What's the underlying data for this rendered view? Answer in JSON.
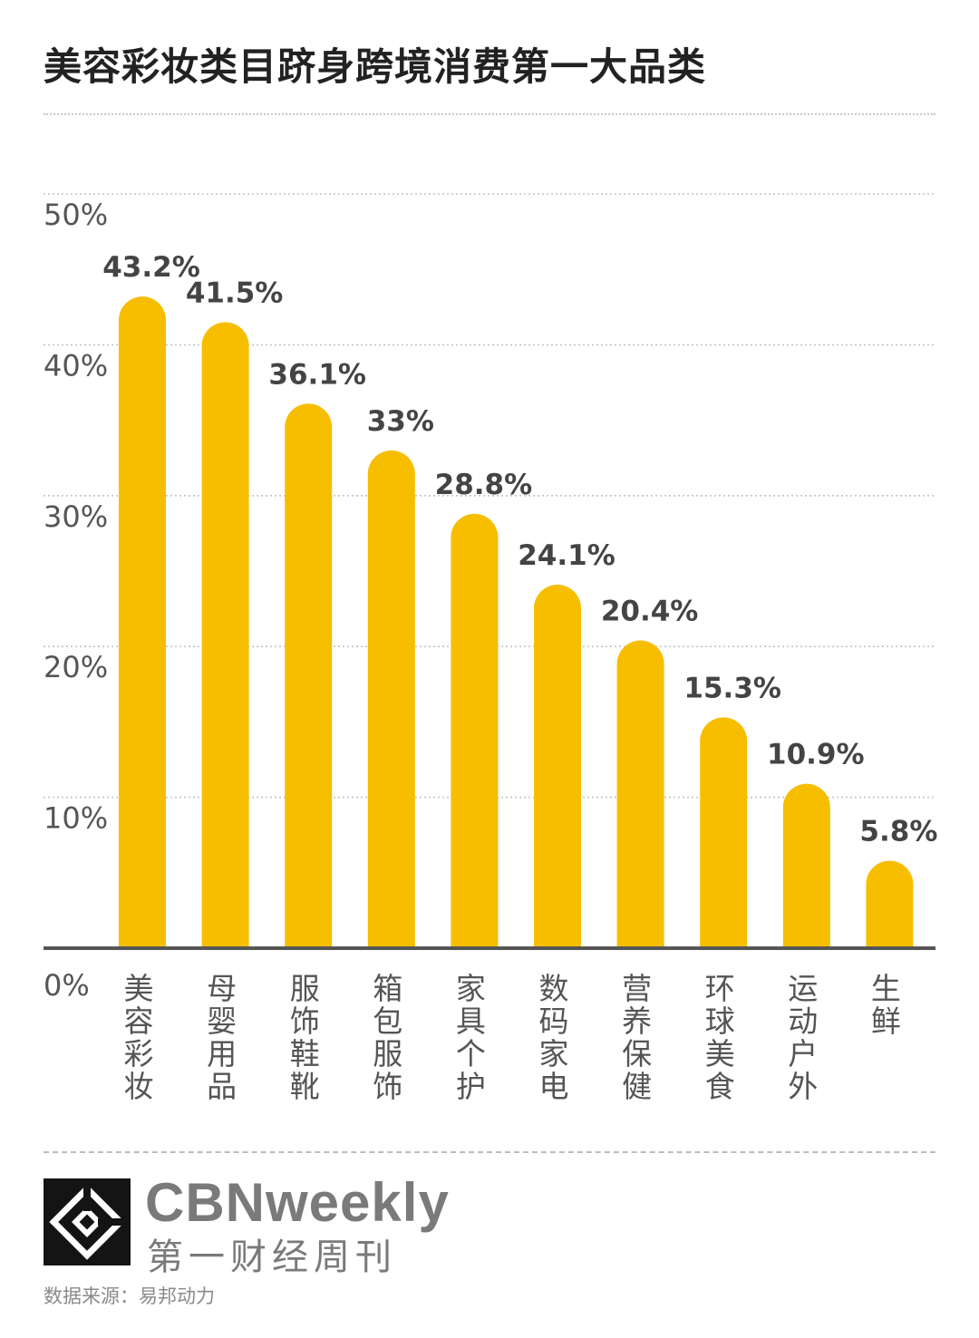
{
  "page": {
    "title": "美容彩妆类目跻身跨境消费第一大品类"
  },
  "chart_data": {
    "type": "bar",
    "title": "美容彩妆类目跻身跨境消费第一大品类",
    "categories": [
      "美容彩妆",
      "母婴用品",
      "服饰鞋靴",
      "箱包服饰",
      "家具个护",
      "数码家电",
      "营养保健",
      "环球美食",
      "运动户外",
      "生鲜"
    ],
    "values": [
      43.2,
      41.5,
      36.1,
      33,
      28.8,
      24.1,
      20.4,
      15.3,
      10.9,
      5.8
    ],
    "value_labels": [
      "43.2%",
      "41.5%",
      "36.1%",
      "33%",
      "28.8%",
      "24.1%",
      "20.4%",
      "15.3%",
      "10.9%",
      "5.8%"
    ],
    "y_ticks": [
      0,
      10,
      20,
      30,
      40,
      50
    ],
    "y_tick_labels": [
      "0%",
      "10%",
      "20%",
      "30%",
      "40%",
      "50%"
    ],
    "ylim": [
      0,
      50
    ],
    "xlabel": "",
    "ylabel": "",
    "grid": true,
    "legend": "none",
    "bar_color": "#F7BE00"
  },
  "brand": {
    "name_en": "CBNweekly",
    "name_cn": "第一财经周刊",
    "logo_icon": "cbn-logo-icon"
  },
  "source": {
    "text": "数据来源：易邦动力"
  },
  "colors": {
    "bar": "#F7BE00",
    "axis": "#555555",
    "tick_text": "#555555",
    "label_text": "#444444"
  }
}
